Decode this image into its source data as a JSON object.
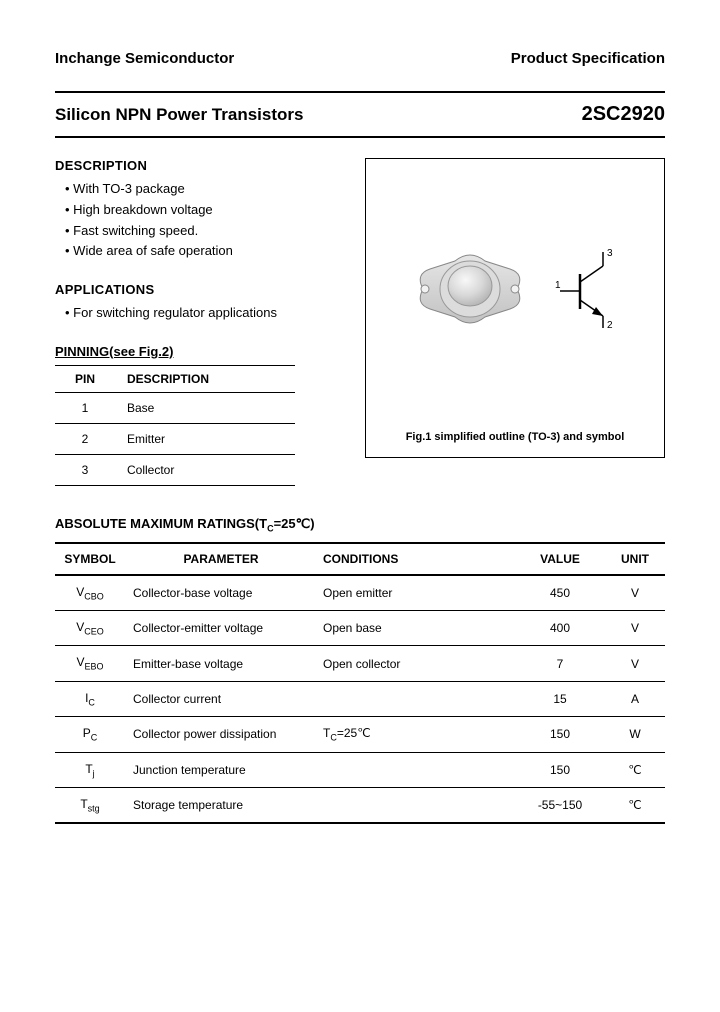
{
  "header": {
    "company": "Inchange Semiconductor",
    "spec": "Product Specification"
  },
  "title": {
    "product": "Silicon NPN Power Transistors",
    "part": "2SC2920"
  },
  "description": {
    "heading": "DESCRIPTION",
    "items": [
      "With TO-3 package",
      "High breakdown voltage",
      "Fast switching speed.",
      "Wide area of safe operation"
    ]
  },
  "applications": {
    "heading": "APPLICATIONS",
    "items": [
      "For switching regulator applications"
    ]
  },
  "pinning": {
    "heading": "PINNING(see Fig.2)",
    "cols": {
      "pin": "PIN",
      "desc": "DESCRIPTION"
    },
    "rows": [
      {
        "pin": "1",
        "desc": "Base"
      },
      {
        "pin": "2",
        "desc": "Emitter"
      },
      {
        "pin": "3",
        "desc": "Collector"
      }
    ]
  },
  "figure": {
    "caption": "Fig.1 simplified outline (TO-3) and symbol",
    "pins": {
      "p1": "1",
      "p2": "2",
      "p3": "3"
    },
    "colors": {
      "pkg_light": "#e8e8e8",
      "pkg_mid": "#d0d0d0",
      "pkg_dark": "#bababa",
      "stroke": "#666666",
      "sym_stroke": "#000000"
    }
  },
  "ratings": {
    "heading": "ABSOLUTE MAXIMUM RATINGS(T",
    "heading_sub": "C",
    "heading_tail": "=25℃)",
    "cols": {
      "sym": "SYMBOL",
      "par": "PARAMETER",
      "con": "CONDITIONS",
      "val": "VALUE",
      "uni": "UNIT"
    },
    "rows": [
      {
        "sym": "V",
        "sub": "CBO",
        "par": "Collector-base voltage",
        "con": "Open emitter",
        "val": "450",
        "uni": "V"
      },
      {
        "sym": "V",
        "sub": "CEO",
        "par": "Collector-emitter voltage",
        "con": "Open base",
        "val": "400",
        "uni": "V"
      },
      {
        "sym": "V",
        "sub": "EBO",
        "par": "Emitter-base voltage",
        "con": "Open collector",
        "val": "7",
        "uni": "V"
      },
      {
        "sym": "I",
        "sub": "C",
        "par": "Collector current",
        "con": "",
        "val": "15",
        "uni": "A"
      },
      {
        "sym": "P",
        "sub": "C",
        "par": "Collector power dissipation",
        "con": "T",
        "con_sub": "C",
        "con_tail": "=25℃",
        "val": "150",
        "uni": "W"
      },
      {
        "sym": "T",
        "sub": "j",
        "par": "Junction temperature",
        "con": "",
        "val": "150",
        "uni": "℃"
      },
      {
        "sym": "T",
        "sub": "stg",
        "par": "Storage temperature",
        "con": "",
        "val": "-55~150",
        "uni": "℃"
      }
    ]
  }
}
